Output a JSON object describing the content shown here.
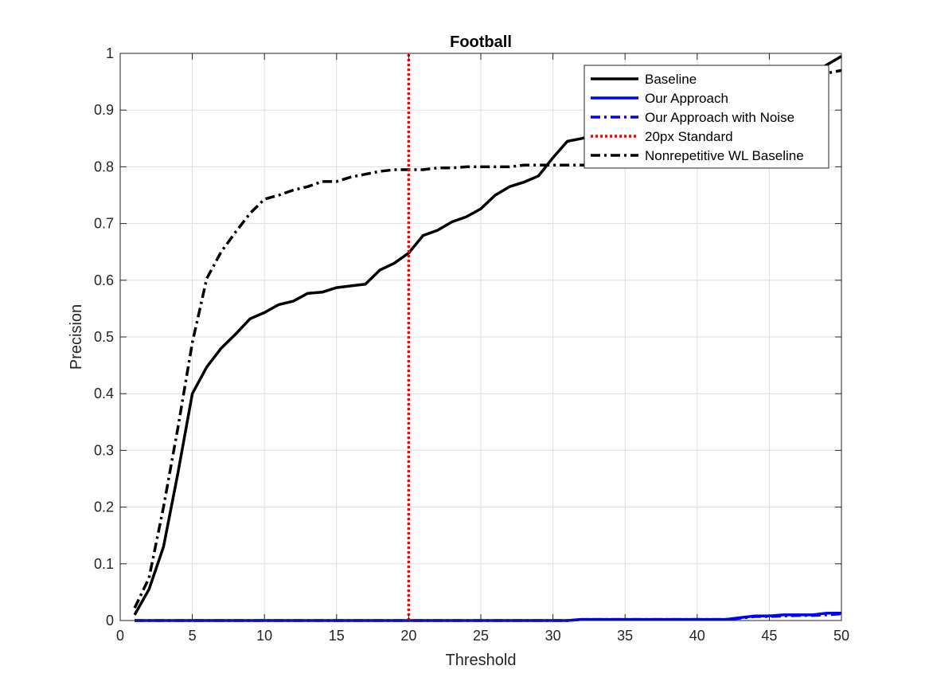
{
  "chart_data": {
    "type": "line",
    "title": "Football",
    "xlabel": "Threshold",
    "ylabel": "Precision",
    "xlim": [
      0,
      50
    ],
    "ylim": [
      0,
      1
    ],
    "xticks": [
      0,
      5,
      10,
      15,
      20,
      25,
      30,
      35,
      40,
      45,
      50
    ],
    "yticks": [
      0,
      0.1,
      0.2,
      0.3,
      0.4,
      0.5,
      0.6,
      0.7,
      0.8,
      0.9,
      1
    ],
    "grid": true,
    "legend_position": "top-right",
    "series": [
      {
        "name": "Baseline",
        "color": "#000000",
        "style": "solid",
        "x": [
          1,
          2,
          3,
          4,
          5,
          6,
          7,
          8,
          9,
          10,
          11,
          12,
          13,
          14,
          15,
          16,
          17,
          18,
          19,
          20,
          21,
          22,
          23,
          24,
          25,
          26,
          27,
          28,
          29,
          30,
          31,
          32,
          33,
          34,
          35,
          36,
          37,
          38,
          39,
          40,
          41,
          42,
          43,
          44,
          45,
          46,
          47,
          48,
          49,
          50
        ],
        "values": [
          0.01,
          0.055,
          0.13,
          0.26,
          0.4,
          0.447,
          0.48,
          0.505,
          0.532,
          0.543,
          0.557,
          0.563,
          0.577,
          0.579,
          0.587,
          0.59,
          0.593,
          0.618,
          0.63,
          0.648,
          0.679,
          0.688,
          0.703,
          0.712,
          0.726,
          0.75,
          0.765,
          0.773,
          0.784,
          0.816,
          0.845,
          0.85,
          0.857,
          0.865,
          0.872,
          0.878,
          0.884,
          0.89,
          0.897,
          0.903,
          0.91,
          0.917,
          0.924,
          0.93,
          0.937,
          0.944,
          0.952,
          0.965,
          0.98,
          0.995
        ]
      },
      {
        "name": "Our Approach",
        "color": "#0000ff",
        "style": "solid",
        "x": [
          1,
          5,
          10,
          15,
          20,
          25,
          30,
          31,
          32,
          35,
          40,
          42,
          43,
          44,
          45,
          46,
          47,
          48,
          49,
          50
        ],
        "values": [
          0,
          0,
          0,
          0,
          0,
          0,
          0,
          0,
          0.002,
          0.002,
          0.002,
          0.002,
          0.005,
          0.008,
          0.008,
          0.01,
          0.01,
          0.01,
          0.013,
          0.013
        ]
      },
      {
        "name": "Our Approach with Noise",
        "color": "#0000ff",
        "style": "dashdot",
        "x": [
          1,
          5,
          10,
          15,
          20,
          25,
          30,
          31,
          32,
          35,
          40,
          42,
          43,
          44,
          45,
          46,
          47,
          48,
          49,
          50
        ],
        "values": [
          0,
          0,
          0,
          0,
          0,
          0,
          0,
          0,
          0.002,
          0.002,
          0.002,
          0.002,
          0.004,
          0.007,
          0.007,
          0.008,
          0.009,
          0.009,
          0.01,
          0.012
        ]
      },
      {
        "name": "20px Standard",
        "color": "#ff0000",
        "style": "dotted",
        "x": [
          20,
          20
        ],
        "values": [
          0,
          1
        ]
      },
      {
        "name": "Nonrepetitive WL Baseline",
        "color": "#000000",
        "style": "dashdot",
        "x": [
          1,
          2,
          3,
          4,
          5,
          6,
          7,
          8,
          9,
          10,
          11,
          12,
          13,
          14,
          15,
          16,
          17,
          18,
          19,
          20,
          21,
          22,
          23,
          24,
          25,
          26,
          27,
          28,
          29,
          30,
          31,
          32,
          33,
          34,
          35,
          36,
          37,
          38,
          39,
          40,
          41,
          42,
          43,
          44,
          45,
          46,
          47,
          48,
          49,
          50
        ],
        "values": [
          0.022,
          0.075,
          0.2,
          0.34,
          0.49,
          0.603,
          0.65,
          0.685,
          0.718,
          0.743,
          0.75,
          0.759,
          0.765,
          0.774,
          0.774,
          0.782,
          0.787,
          0.792,
          0.795,
          0.795,
          0.795,
          0.798,
          0.798,
          0.8,
          0.8,
          0.8,
          0.8,
          0.803,
          0.803,
          0.803,
          0.803,
          0.803,
          0.803,
          0.806,
          0.81,
          0.82,
          0.83,
          0.85,
          0.87,
          0.89,
          0.905,
          0.92,
          0.93,
          0.938,
          0.945,
          0.95,
          0.955,
          0.96,
          0.965,
          0.97
        ]
      }
    ]
  }
}
